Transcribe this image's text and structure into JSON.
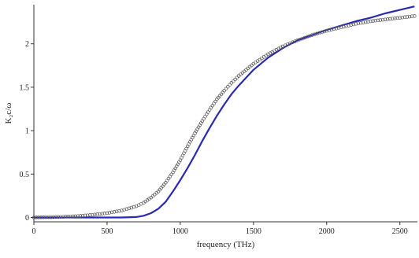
{
  "chart_data": {
    "type": "line",
    "xlabel": "frequency (THz)",
    "ylabel": "K₂c/ω",
    "xlim": [
      0,
      2620
    ],
    "ylim": [
      -0.05,
      2.45
    ],
    "x_ticks": [
      0,
      500,
      1000,
      1500,
      2000,
      2500
    ],
    "y_ticks": [
      0,
      0.5,
      1,
      1.5,
      2
    ],
    "x_tick_labels": [
      "0",
      "500",
      "1000",
      "1500",
      "2000",
      "2500"
    ],
    "y_tick_labels": [
      "0",
      "0.5",
      "1",
      "1.5",
      "2"
    ],
    "grid": false,
    "legend": "none",
    "series": [
      {
        "style": "solid-line",
        "color": "#2a2ab0",
        "points": [
          [
            0,
            0
          ],
          [
            200,
            0
          ],
          [
            400,
            0
          ],
          [
            600,
            0
          ],
          [
            700,
            0.005
          ],
          [
            750,
            0.02
          ],
          [
            800,
            0.05
          ],
          [
            850,
            0.1
          ],
          [
            900,
            0.18
          ],
          [
            950,
            0.3
          ],
          [
            1000,
            0.43
          ],
          [
            1050,
            0.57
          ],
          [
            1100,
            0.72
          ],
          [
            1150,
            0.88
          ],
          [
            1200,
            1.03
          ],
          [
            1250,
            1.17
          ],
          [
            1300,
            1.3
          ],
          [
            1350,
            1.42
          ],
          [
            1400,
            1.52
          ],
          [
            1500,
            1.7
          ],
          [
            1600,
            1.84
          ],
          [
            1700,
            1.95
          ],
          [
            1800,
            2.04
          ],
          [
            1900,
            2.1
          ],
          [
            2000,
            2.16
          ],
          [
            2100,
            2.21
          ],
          [
            2200,
            2.26
          ],
          [
            2300,
            2.3
          ],
          [
            2400,
            2.35
          ],
          [
            2500,
            2.39
          ],
          [
            2600,
            2.43
          ]
        ]
      },
      {
        "style": "open-circles",
        "color": "#555555",
        "points": [
          [
            0,
            0
          ],
          [
            100,
            0.003
          ],
          [
            200,
            0.008
          ],
          [
            300,
            0.016
          ],
          [
            400,
            0.03
          ],
          [
            500,
            0.05
          ],
          [
            600,
            0.08
          ],
          [
            700,
            0.13
          ],
          [
            750,
            0.17
          ],
          [
            800,
            0.23
          ],
          [
            850,
            0.3
          ],
          [
            900,
            0.4
          ],
          [
            950,
            0.52
          ],
          [
            1000,
            0.66
          ],
          [
            1050,
            0.82
          ],
          [
            1100,
            0.97
          ],
          [
            1150,
            1.11
          ],
          [
            1200,
            1.24
          ],
          [
            1250,
            1.36
          ],
          [
            1300,
            1.46
          ],
          [
            1350,
            1.55
          ],
          [
            1400,
            1.63
          ],
          [
            1500,
            1.77
          ],
          [
            1600,
            1.88
          ],
          [
            1700,
            1.97
          ],
          [
            1800,
            2.04
          ],
          [
            1900,
            2.1
          ],
          [
            2000,
            2.15
          ],
          [
            2100,
            2.19
          ],
          [
            2200,
            2.23
          ],
          [
            2300,
            2.26
          ],
          [
            2400,
            2.28
          ],
          [
            2500,
            2.3
          ],
          [
            2600,
            2.32
          ]
        ]
      }
    ]
  }
}
